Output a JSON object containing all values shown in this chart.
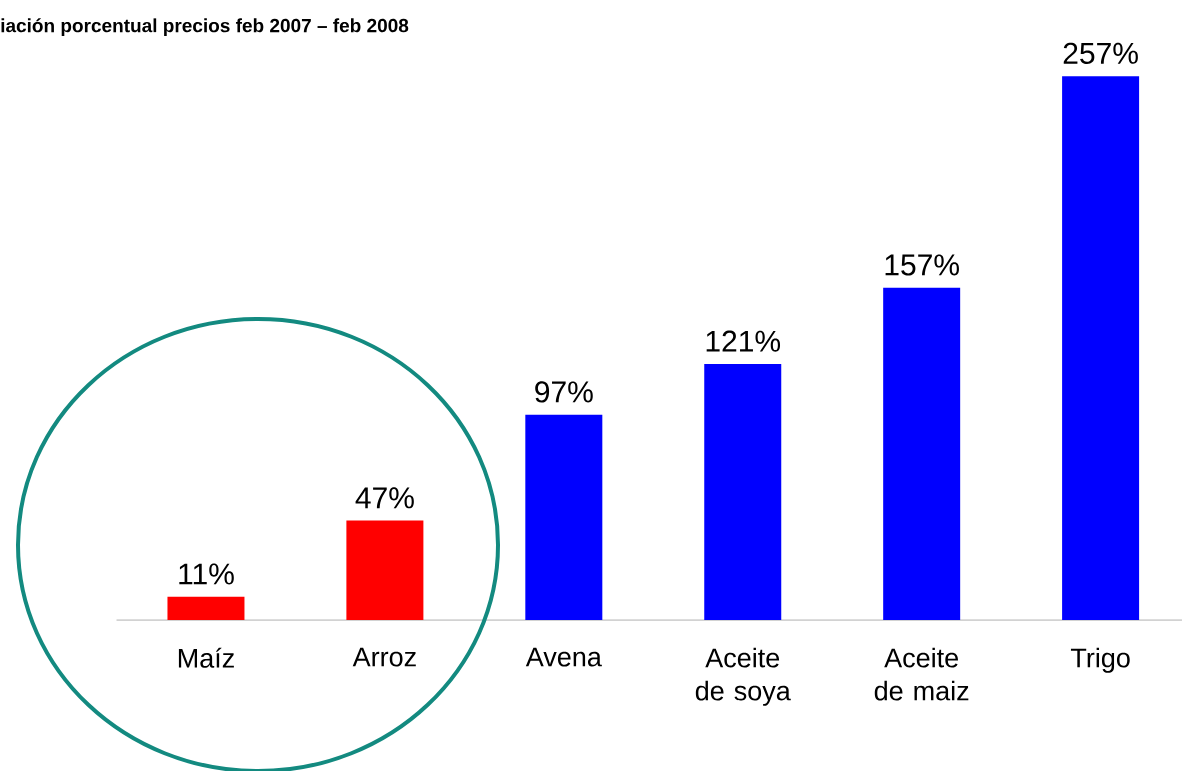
{
  "chart_data": {
    "type": "bar",
    "title": "iación porcentual precios feb 2007 – feb 2008",
    "categories": [
      "Maíz",
      "Arroz",
      "Avena",
      "Aceite de soya",
      "Aceite de maiz",
      "Trigo"
    ],
    "values": [
      11,
      47,
      97,
      121,
      157,
      257
    ],
    "colors": [
      "#ff0000",
      "#ff0000",
      "#0000ff",
      "#0000ff",
      "#0000ff",
      "#0000ff"
    ],
    "value_labels": [
      "11%",
      "47%",
      "97%",
      "121%",
      "157%",
      "257%"
    ]
  }
}
